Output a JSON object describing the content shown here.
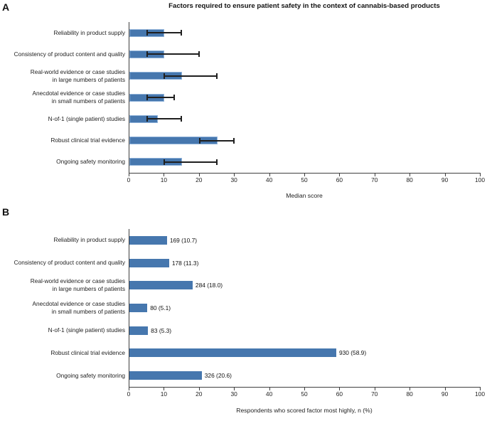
{
  "title": "Factors required to ensure patient safety in the context of cannabis-based products",
  "panels": [
    {
      "letter": "A"
    },
    {
      "letter": "B"
    }
  ],
  "colors": {
    "bar_fill": "#4677ae",
    "bar_border_highlight": "#8fb2d9",
    "axis": "#3f3f3f",
    "error_bar": "#1f1f1f",
    "text": "#1a1a1a"
  },
  "chart_data": [
    {
      "type": "bar",
      "panel": "A",
      "orientation": "horizontal",
      "categories": [
        "Reliability in product supply",
        "Consistency of product content and quality",
        "Real-world evidence or case studies\nin large numbers of patients",
        "Anecdotal evidence or case studies\nin small numbers of patients",
        "N-of-1 (single patient) studies",
        "Robust clinical trial evidence",
        "Ongoing safety monitoring"
      ],
      "values": [
        10,
        10,
        15,
        10,
        8,
        25,
        15
      ],
      "error_low": [
        5,
        5,
        10,
        5,
        5,
        20,
        10
      ],
      "error_high": [
        15,
        20,
        25,
        13,
        15,
        30,
        25
      ],
      "xlabel": "Median score",
      "xlim": [
        0,
        100
      ],
      "xticks": [
        0,
        10,
        20,
        30,
        40,
        50,
        60,
        70,
        80,
        90,
        100
      ],
      "grid": false,
      "legend": "none"
    },
    {
      "type": "bar",
      "panel": "B",
      "orientation": "horizontal",
      "categories": [
        "Reliability in product supply",
        "Consistency of product content and quality",
        "Real-world evidence or case studies\nin large numbers of patients",
        "Anecdotal evidence or case studies\nin small numbers of patients",
        "N-of-1 (single patient) studies",
        "Robust clinical trial evidence",
        "Ongoing safety monitoring"
      ],
      "counts": [
        169,
        178,
        284,
        80,
        83,
        930,
        326
      ],
      "percents": [
        10.7,
        11.3,
        18.0,
        5.1,
        5.3,
        58.9,
        20.6
      ],
      "values": [
        10.7,
        11.3,
        18.0,
        5.1,
        5.3,
        58.9,
        20.6
      ],
      "bar_labels": [
        "169 (10.7)",
        "178 (11.3)",
        "284 (18.0)",
        "80 (5.1)",
        "83 (5.3)",
        "930 (58.9)",
        "326 (20.6)"
      ],
      "xlabel": "Respondents who scored factor most highly, n (%)",
      "xlim": [
        0,
        100
      ],
      "xticks": [
        0,
        10,
        20,
        30,
        40,
        50,
        60,
        70,
        80,
        90,
        100
      ],
      "grid": false,
      "legend": "none"
    }
  ]
}
